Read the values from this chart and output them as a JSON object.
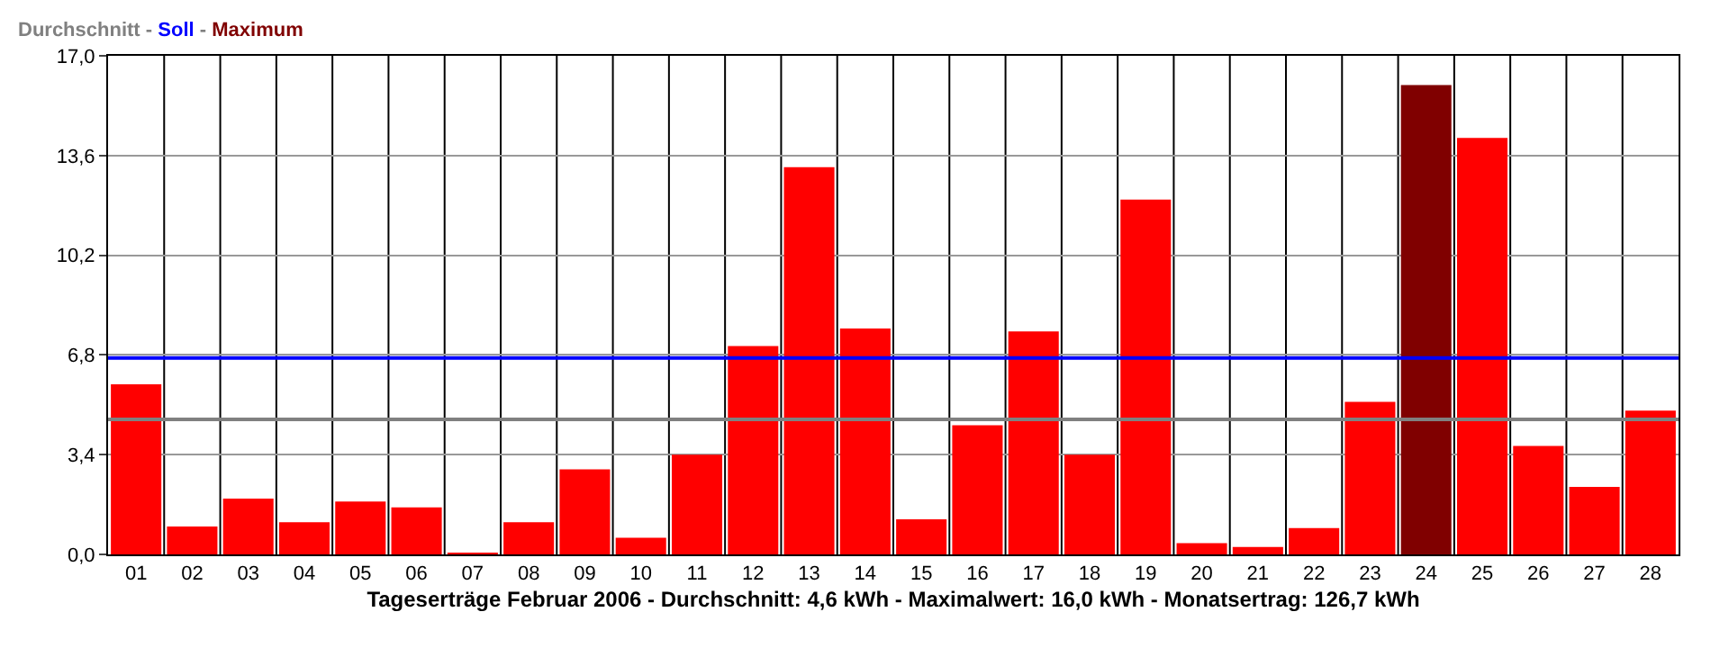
{
  "chart_data": {
    "type": "bar",
    "title": "Durchschnitt - Soll - Maximum",
    "xlabel": "Tageserträge Februar 2006 - Durchschnitt: 4,6 kWh - Maximalwert: 16,0 kWh - Monatsertrag: 126,7 kWh",
    "categories": [
      "01",
      "02",
      "03",
      "04",
      "05",
      "06",
      "07",
      "08",
      "09",
      "10",
      "11",
      "12",
      "13",
      "14",
      "15",
      "16",
      "17",
      "18",
      "19",
      "20",
      "21",
      "22",
      "23",
      "24",
      "25",
      "26",
      "27",
      "28"
    ],
    "values": [
      5.8,
      0.95,
      1.9,
      1.1,
      1.8,
      1.6,
      0.06,
      1.1,
      2.9,
      0.57,
      3.4,
      7.1,
      13.2,
      7.7,
      1.2,
      4.4,
      7.6,
      3.4,
      12.1,
      0.38,
      0.25,
      0.9,
      5.2,
      16.0,
      14.2,
      3.7,
      2.3,
      4.9
    ],
    "colors": [
      "#ff0000",
      "#ff0000",
      "#ff0000",
      "#ff0000",
      "#ff0000",
      "#ff0000",
      "#ff0000",
      "#ff0000",
      "#ff0000",
      "#ff0000",
      "#ff0000",
      "#ff0000",
      "#ff0000",
      "#ff0000",
      "#ff0000",
      "#ff0000",
      "#ff0000",
      "#ff0000",
      "#ff0000",
      "#ff0000",
      "#ff0000",
      "#ff0000",
      "#ff0000",
      "#800000",
      "#ff0000",
      "#ff0000",
      "#ff0000",
      "#ff0000"
    ],
    "ylim": [
      0,
      17
    ],
    "yticks": [
      {
        "value": 0,
        "label": "0,0"
      },
      {
        "value": 3.4,
        "label": "3,4"
      },
      {
        "value": 6.8,
        "label": "6,8"
      },
      {
        "value": 10.2,
        "label": "10,2"
      },
      {
        "value": 13.6,
        "label": "13,6"
      },
      {
        "value": 17,
        "label": "17,0"
      }
    ],
    "ref_lines": [
      {
        "axis": "y",
        "value": 4.6,
        "color": "#808080"
      },
      {
        "axis": "y",
        "value": 6.7,
        "color": "#0000ff"
      }
    ],
    "grid": true
  }
}
